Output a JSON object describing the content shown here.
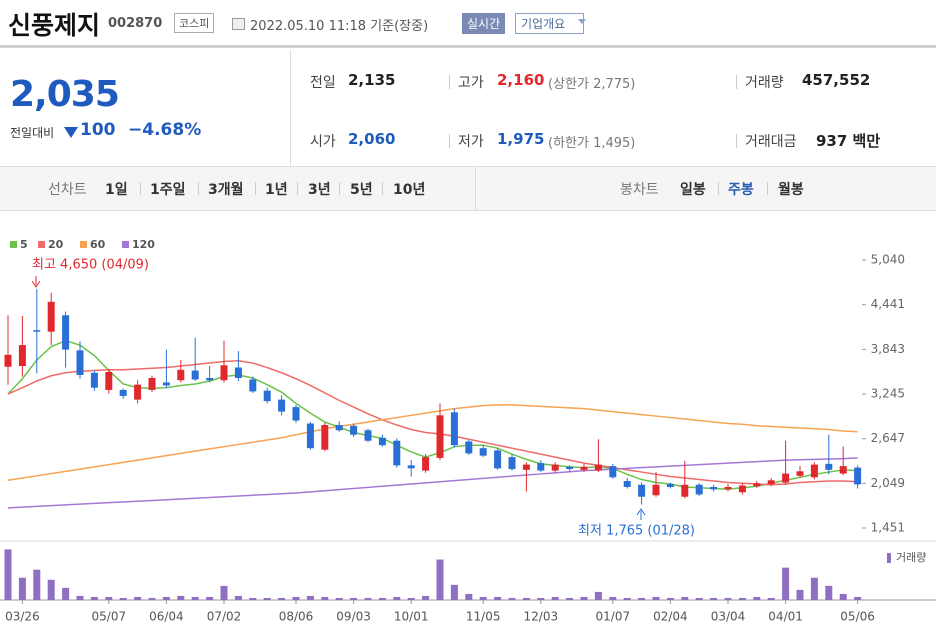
{
  "header": {
    "name": "신풍제지",
    "code": "002870",
    "market": "코스피",
    "timestamp": "2022.05.10 11:18 기준(장중)",
    "realtime": "실시간",
    "company_info": "기업개요"
  },
  "price": {
    "current": "2,035",
    "change_label": "전일대비",
    "change": "100",
    "change_pct": "−4.68%"
  },
  "stats": [
    {
      "label": "전일",
      "value": "2,135"
    },
    {
      "label": "고가",
      "value": "2,160",
      "note": "(상한가 2,775)"
    },
    {
      "label": "거래량",
      "value": "457,552"
    },
    {
      "label": "시가",
      "value": "2,060"
    },
    {
      "label": "저가",
      "value": "1,975",
      "note": "(하한가 1,495)"
    },
    {
      "label": "거래대금",
      "value": "937 백만"
    }
  ],
  "tabs": {
    "line_chart": "선차트",
    "periods": [
      "1일",
      "1주일",
      "3개월",
      "1년",
      "3년",
      "5년",
      "10년"
    ],
    "candle_chart": "봉차트",
    "candle_periods": [
      "일봉",
      "주봉",
      "월봉"
    ]
  },
  "chart_data": {
    "type": "candlestick",
    "up_color": "#e0282e",
    "down_color": "#2a6fd6",
    "categories": [
      null,
      "03/26",
      null,
      null,
      null,
      null,
      null,
      "05/07",
      null,
      null,
      null,
      "06/04",
      null,
      null,
      null,
      "07/02",
      null,
      null,
      null,
      null,
      "08/06",
      null,
      null,
      null,
      "09/03",
      null,
      null,
      null,
      "10/01",
      null,
      null,
      null,
      null,
      "11/05",
      null,
      null,
      null,
      "12/03",
      null,
      null,
      null,
      null,
      "01/07",
      null,
      null,
      null,
      "02/04",
      null,
      null,
      null,
      "03/04",
      null,
      null,
      null,
      "04/01",
      null,
      null,
      null,
      null,
      "05/06"
    ],
    "open": [
      3610,
      3620,
      4100,
      4080,
      4300,
      3830,
      3530,
      3300,
      3300,
      3170,
      3300,
      3400,
      3430,
      3560,
      3460,
      3430,
      3600,
      3440,
      3290,
      3170,
      3070,
      2850,
      2500,
      2830,
      2820,
      2760,
      2660,
      2620,
      2290,
      2220,
      2390,
      3000,
      2610,
      2520,
      2490,
      2400,
      2230,
      2320,
      2220,
      2270,
      2230,
      2220,
      2280,
      2080,
      2030,
      1890,
      2040,
      1870,
      2030,
      2000,
      1970,
      1930,
      2010,
      2040,
      2060,
      2150,
      2130,
      2310,
      2180,
      2260
    ],
    "high": [
      4300,
      4290,
      4650,
      4600,
      4350,
      3950,
      3560,
      3580,
      3320,
      3430,
      3490,
      3840,
      3700,
      4000,
      3620,
      3960,
      3820,
      3480,
      3330,
      3230,
      3100,
      2870,
      2860,
      2880,
      2850,
      2780,
      2700,
      2650,
      2360,
      2440,
      3120,
      3050,
      2630,
      2560,
      2520,
      2440,
      2330,
      2360,
      2330,
      2290,
      2310,
      2640,
      2310,
      2120,
      2060,
      2200,
      2060,
      2350,
      2050,
      2030,
      2040,
      2050,
      2080,
      2120,
      2620,
      2280,
      2330,
      2700,
      2540,
      2290
    ],
    "low": [
      3370,
      3480,
      3520,
      3900,
      3600,
      3450,
      3290,
      3250,
      3180,
      3120,
      3270,
      3320,
      3400,
      3420,
      3400,
      3400,
      3420,
      3260,
      3120,
      2960,
      2860,
      2500,
      2480,
      2740,
      2670,
      2600,
      2540,
      2260,
      2140,
      2190,
      2360,
      2530,
      2430,
      2400,
      2230,
      2220,
      1940,
      2200,
      2190,
      2200,
      2200,
      2200,
      2110,
      1980,
      1765,
      1870,
      1980,
      1850,
      1880,
      1940,
      1940,
      1900,
      1990,
      2010,
      2030,
      2120,
      2100,
      2170,
      2160,
      1980
    ],
    "close": [
      3770,
      3900,
      4080,
      4480,
      3840,
      3500,
      3330,
      3540,
      3220,
      3370,
      3460,
      3360,
      3570,
      3440,
      3430,
      3630,
      3460,
      3280,
      3150,
      3010,
      2890,
      2520,
      2830,
      2760,
      2700,
      2620,
      2560,
      2290,
      2250,
      2400,
      2960,
      2560,
      2450,
      2420,
      2250,
      2240,
      2300,
      2220,
      2300,
      2240,
      2270,
      2300,
      2130,
      2000,
      1870,
      2030,
      2000,
      2030,
      1900,
      1970,
      2000,
      2020,
      2050,
      2090,
      2180,
      2210,
      2300,
      2230,
      2280,
      2035
    ],
    "ylim": [
      1451,
      5040
    ],
    "yticks": [
      {
        "value": 5040,
        "label": "5,040"
      },
      {
        "value": 4441,
        "label": "4,441"
      },
      {
        "value": 3843,
        "label": "3,843"
      },
      {
        "value": 3245,
        "label": "3,245"
      },
      {
        "value": 2647,
        "label": "2,647"
      },
      {
        "value": 2049,
        "label": "2,049"
      },
      {
        "value": 1451,
        "label": "1,451"
      }
    ],
    "series": [
      {
        "name": "5",
        "color": "#6cc24a",
        "values": [
          3245,
          3450,
          3700,
          3880,
          3960,
          3900,
          3760,
          3560,
          3380,
          3330,
          3320,
          3330,
          3360,
          3380,
          3420,
          3480,
          3500,
          3460,
          3370,
          3270,
          3120,
          2990,
          2870,
          2800,
          2730,
          2690,
          2650,
          2560,
          2470,
          2400,
          2460,
          2540,
          2560,
          2560,
          2520,
          2440,
          2370,
          2310,
          2290,
          2270,
          2260,
          2270,
          2250,
          2170,
          2100,
          2060,
          2040,
          2000,
          1990,
          1980,
          1970,
          1990,
          2010,
          2050,
          2090,
          2130,
          2170,
          2200,
          2230,
          2220
        ]
      },
      {
        "name": "20",
        "color": "#ef6a6a",
        "values": [
          3245,
          3330,
          3420,
          3490,
          3530,
          3550,
          3560,
          3570,
          3570,
          3580,
          3590,
          3600,
          3620,
          3640,
          3660,
          3680,
          3690,
          3660,
          3600,
          3530,
          3450,
          3360,
          3260,
          3160,
          3070,
          2980,
          2900,
          2830,
          2770,
          2730,
          2710,
          2680,
          2640,
          2600,
          2560,
          2520,
          2480,
          2440,
          2400,
          2360,
          2320,
          2290,
          2260,
          2230,
          2200,
          2170,
          2140,
          2120,
          2100,
          2080,
          2060,
          2050,
          2040,
          2030,
          2040,
          2060,
          2070,
          2080,
          2080,
          2070
        ]
      },
      {
        "name": "60",
        "color": "#f7a353",
        "values": [
          2090,
          2120,
          2150,
          2180,
          2210,
          2240,
          2270,
          2300,
          2330,
          2360,
          2390,
          2420,
          2450,
          2480,
          2510,
          2540,
          2570,
          2600,
          2630,
          2660,
          2700,
          2740,
          2780,
          2810,
          2840,
          2870,
          2900,
          2930,
          2960,
          2990,
          3020,
          3050,
          3070,
          3090,
          3100,
          3100,
          3090,
          3080,
          3070,
          3060,
          3050,
          3030,
          3010,
          2990,
          2970,
          2950,
          2930,
          2910,
          2890,
          2870,
          2850,
          2840,
          2820,
          2810,
          2800,
          2790,
          2780,
          2770,
          2750,
          2740
        ]
      },
      {
        "name": "120",
        "color": "#a678d6",
        "values": [
          1720,
          1730,
          1740,
          1750,
          1760,
          1770,
          1780,
          1790,
          1800,
          1810,
          1820,
          1830,
          1840,
          1850,
          1860,
          1870,
          1880,
          1890,
          1900,
          1910,
          1920,
          1935,
          1950,
          1965,
          1980,
          1995,
          2010,
          2025,
          2040,
          2055,
          2070,
          2085,
          2100,
          2115,
          2130,
          2145,
          2160,
          2175,
          2190,
          2205,
          2220,
          2230,
          2240,
          2250,
          2260,
          2270,
          2280,
          2290,
          2300,
          2310,
          2320,
          2330,
          2340,
          2350,
          2360,
          2365,
          2370,
          2375,
          2380,
          2390
        ]
      }
    ],
    "max_annotation": "최고 4,650 (04/09)",
    "min_annotation": "최저 1,765 (01/28)",
    "volume_label": "거래량",
    "volume_color": "#8e6fc2",
    "volume_ylim": [
      0,
      3600000
    ],
    "volume": [
      3500000,
      1540000,
      2100000,
      1400000,
      840000,
      280000,
      210000,
      210000,
      140000,
      210000,
      140000,
      210000,
      280000,
      210000,
      210000,
      980000,
      280000,
      140000,
      140000,
      140000,
      210000,
      280000,
      210000,
      140000,
      140000,
      140000,
      140000,
      210000,
      140000,
      280000,
      2800000,
      1050000,
      420000,
      210000,
      210000,
      140000,
      140000,
      140000,
      210000,
      140000,
      210000,
      560000,
      210000,
      140000,
      140000,
      210000,
      140000,
      210000,
      140000,
      140000,
      140000,
      140000,
      210000,
      140000,
      2240000,
      700000,
      1540000,
      980000,
      420000,
      210000
    ]
  }
}
